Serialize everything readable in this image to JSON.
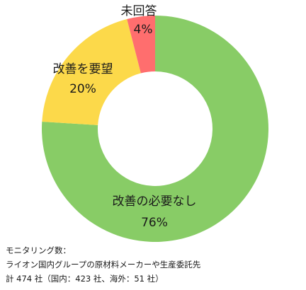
{
  "chart_data": {
    "type": "pie",
    "donut": true,
    "slices": [
      {
        "label": "改善の必要なし",
        "value": 76,
        "value_label": "76%",
        "color": "#88cc66"
      },
      {
        "label": "改善を要望",
        "value": 20,
        "value_label": "20%",
        "color": "#fcd94a"
      },
      {
        "label": "未回答",
        "value": 4,
        "value_label": "4%",
        "color": "#ff6e6e"
      }
    ]
  },
  "note": {
    "line1": "モニタリング数：",
    "line2": "ライオン国内グループの原材料メーカーや生産委託先",
    "line3": "計 474 社（国内：423 社、海外：51 社）"
  }
}
